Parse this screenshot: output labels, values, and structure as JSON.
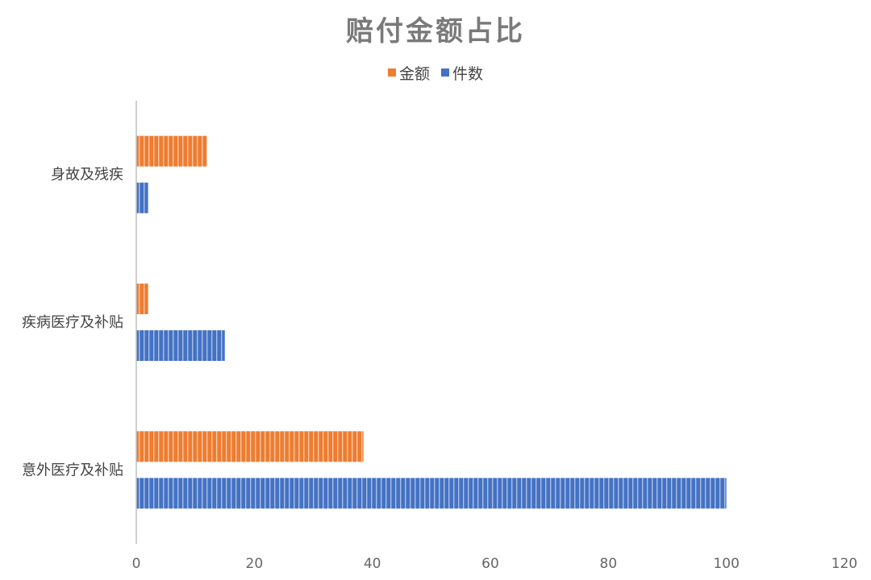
{
  "chart_data": {
    "type": "bar",
    "orientation": "horizontal",
    "title": "赔付金额占比",
    "categories": [
      "身故及残疾",
      "疾病医疗及补贴",
      "意外医疗及补贴"
    ],
    "series": [
      {
        "name": "金额",
        "color": "#ed7d31",
        "values": [
          12,
          2,
          38.5
        ]
      },
      {
        "name": "件数",
        "color": "#4472c4",
        "values": [
          2,
          15,
          100
        ]
      }
    ],
    "xlim": [
      0,
      120
    ],
    "ticks": [
      0,
      20,
      40,
      60,
      80,
      100,
      120
    ],
    "legend_position": "top",
    "grid": false,
    "bar_fill": "vertical-stripe-hatch"
  }
}
